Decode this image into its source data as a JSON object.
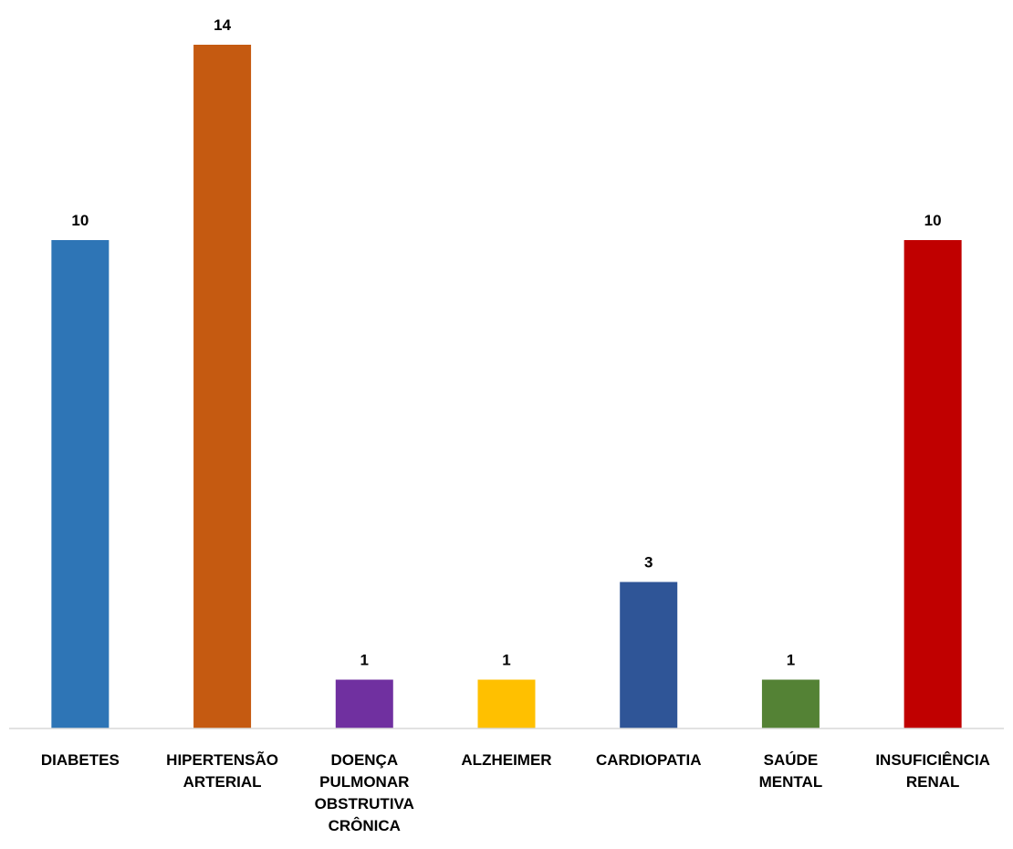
{
  "chart_data": {
    "type": "bar",
    "title": "",
    "xlabel": "",
    "ylabel": "",
    "ylim": [
      0,
      14
    ],
    "grid": false,
    "legend": "none",
    "categories": [
      [
        "DIABETES"
      ],
      [
        "HIPERTENSÃO",
        "ARTERIAL"
      ],
      [
        "DOENÇA",
        "PULMONAR",
        "OBSTRUTIVA",
        "CRÔNICA"
      ],
      [
        "ALZHEIMER"
      ],
      [
        "CARDIOPATIA"
      ],
      [
        "SAÚDE",
        "MENTAL"
      ],
      [
        "INSUFICIÊNCIA",
        "RENAL"
      ]
    ],
    "values": [
      10,
      14,
      1,
      1,
      3,
      1,
      10
    ],
    "colors": [
      "#2E75B6",
      "#C55A11",
      "#7030A0",
      "#FFC000",
      "#2F5597",
      "#548235",
      "#C00000"
    ],
    "data_labels": [
      "10",
      "14",
      "1",
      "1",
      "3",
      "1",
      "10"
    ]
  }
}
